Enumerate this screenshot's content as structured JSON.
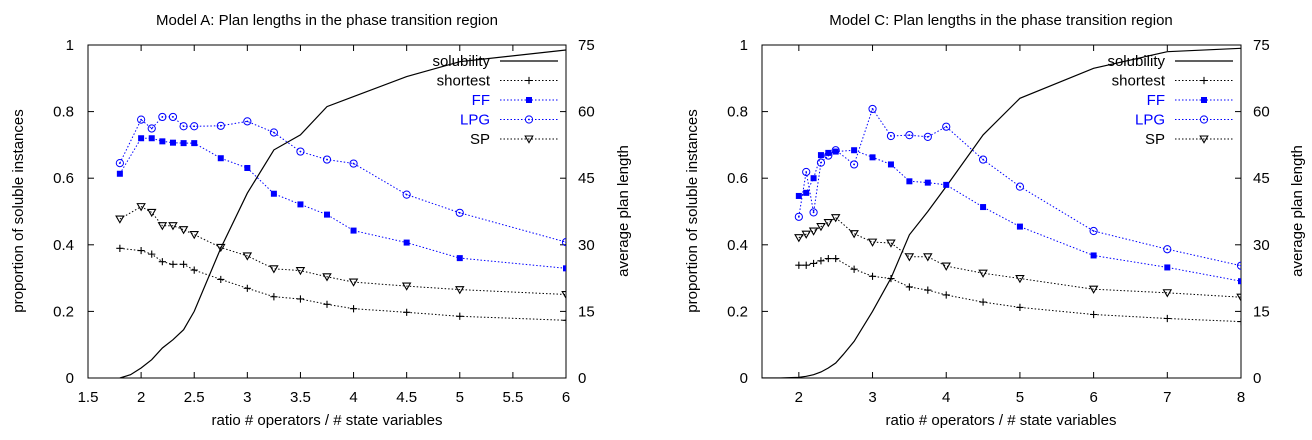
{
  "chart_data": [
    {
      "type": "line",
      "title": "Model A: Plan lengths in the phase transition region",
      "xlabel": "ratio # operators / # state variables",
      "ylabel": "proportion of soluble instances",
      "y2label": "average plan length",
      "xlim": [
        1.5,
        6
      ],
      "ylim": [
        0,
        1
      ],
      "y2lim": [
        0,
        75
      ],
      "xticks": [
        "1.5",
        "2",
        "2.5",
        "3",
        "3.5",
        "4",
        "4.5",
        "5",
        "5.5",
        "6"
      ],
      "yticks": [
        "0",
        "0.2",
        "0.4",
        "0.6",
        "0.8",
        "1"
      ],
      "y2ticks": [
        "0",
        "15",
        "30",
        "45",
        "60",
        "75"
      ],
      "legend_position": "top-right",
      "series": [
        {
          "name": "solubility",
          "axis": "left",
          "style": "solid",
          "marker": "none",
          "color": "#000000",
          "x": [
            1.8,
            1.9,
            2.0,
            2.1,
            2.2,
            2.3,
            2.4,
            2.5,
            2.75,
            3.0,
            3.25,
            3.5,
            3.75,
            4.0,
            4.5,
            5.0,
            6.0
          ],
          "y": [
            0.0,
            0.01,
            0.03,
            0.055,
            0.09,
            0.115,
            0.145,
            0.2,
            0.39,
            0.555,
            0.685,
            0.73,
            0.815,
            0.845,
            0.905,
            0.95,
            0.985
          ]
        },
        {
          "name": "shortest",
          "axis": "right",
          "style": "dotted",
          "marker": "plus",
          "color": "#000000",
          "x": [
            1.8,
            2.0,
            2.1,
            2.2,
            2.3,
            2.4,
            2.5,
            2.75,
            3.0,
            3.25,
            3.5,
            3.75,
            4.0,
            4.5,
            5.0,
            6.0
          ],
          "y": [
            29.2,
            28.7,
            27.9,
            26.2,
            25.6,
            25.6,
            24.3,
            22.2,
            20.2,
            18.3,
            17.8,
            16.6,
            15.6,
            14.8,
            13.9,
            13.0
          ]
        },
        {
          "name": "FF",
          "axis": "right",
          "style": "dotted",
          "marker": "square",
          "color": "#0000ff",
          "x": [
            1.8,
            2.0,
            2.1,
            2.2,
            2.3,
            2.4,
            2.5,
            2.75,
            3.0,
            3.25,
            3.5,
            3.75,
            4.0,
            4.5,
            5.0,
            6.0
          ],
          "y": [
            46.0,
            54.0,
            54.0,
            53.3,
            53.0,
            52.9,
            52.9,
            49.5,
            47.3,
            41.5,
            39.1,
            36.8,
            33.2,
            30.5,
            27.0,
            24.7
          ]
        },
        {
          "name": "LPG",
          "axis": "right",
          "style": "dotted",
          "marker": "circle",
          "color": "#0000ff",
          "x": [
            1.8,
            2.0,
            2.1,
            2.2,
            2.3,
            2.4,
            2.5,
            2.75,
            3.0,
            3.25,
            3.5,
            3.75,
            4.0,
            4.5,
            5.0,
            6.0
          ],
          "y": [
            48.4,
            58.2,
            56.2,
            58.8,
            58.8,
            56.7,
            56.7,
            56.8,
            57.8,
            55.3,
            51.0,
            49.2,
            48.3,
            41.3,
            37.2,
            30.6
          ]
        },
        {
          "name": "SP",
          "axis": "right",
          "style": "dotted",
          "marker": "triangle-down",
          "color": "#000000",
          "x": [
            1.8,
            2.0,
            2.1,
            2.2,
            2.3,
            2.4,
            2.5,
            2.75,
            3.0,
            3.25,
            3.5,
            3.75,
            4.0,
            4.5,
            5.0,
            6.0
          ],
          "y": [
            35.8,
            38.6,
            37.3,
            34.3,
            34.3,
            33.4,
            32.3,
            29.4,
            27.5,
            24.6,
            24.2,
            22.8,
            21.6,
            20.7,
            19.9,
            18.8
          ]
        }
      ]
    },
    {
      "type": "line",
      "title": "Model C: Plan lengths in the phase transition region",
      "xlabel": "ratio # operators / # state variables",
      "ylabel": "proportion of soluble instances",
      "y2label": "average plan length",
      "xlim": [
        1.5,
        8
      ],
      "ylim": [
        0,
        1
      ],
      "y2lim": [
        0,
        75
      ],
      "xticks": [
        "2",
        "3",
        "4",
        "5",
        "6",
        "7",
        "8"
      ],
      "yticks": [
        "0",
        "0.2",
        "0.4",
        "0.6",
        "0.8",
        "1"
      ],
      "y2ticks": [
        "0",
        "15",
        "30",
        "45",
        "60",
        "75"
      ],
      "legend_position": "top-right",
      "series": [
        {
          "name": "solubility",
          "axis": "left",
          "style": "solid",
          "marker": "none",
          "color": "#000000",
          "x": [
            1.5,
            1.75,
            2.0,
            2.1,
            2.2,
            2.3,
            2.4,
            2.5,
            2.6,
            2.75,
            3.0,
            3.25,
            3.5,
            3.75,
            4.0,
            4.5,
            5.0,
            6.0,
            7.0,
            8.0
          ],
          "y": [
            0.0,
            0.0,
            0.002,
            0.005,
            0.01,
            0.018,
            0.03,
            0.045,
            0.07,
            0.11,
            0.2,
            0.3,
            0.43,
            0.5,
            0.575,
            0.73,
            0.84,
            0.93,
            0.98,
            0.99
          ]
        },
        {
          "name": "shortest",
          "axis": "right",
          "style": "dotted",
          "marker": "plus",
          "color": "#000000",
          "x": [
            2.0,
            2.1,
            2.2,
            2.3,
            2.4,
            2.5,
            2.75,
            3.0,
            3.25,
            3.5,
            3.75,
            4.0,
            4.5,
            5.0,
            6.0,
            7.0,
            8.0
          ],
          "y": [
            25.4,
            25.4,
            25.8,
            26.4,
            26.9,
            26.9,
            24.5,
            22.9,
            22.4,
            20.5,
            19.8,
            18.7,
            17.1,
            15.9,
            14.3,
            13.4,
            12.7
          ]
        },
        {
          "name": "FF",
          "axis": "right",
          "style": "dotted",
          "marker": "square",
          "color": "#0000ff",
          "x": [
            2.0,
            2.1,
            2.2,
            2.3,
            2.4,
            2.5,
            2.75,
            3.0,
            3.25,
            3.5,
            3.75,
            4.0,
            4.5,
            5.0,
            6.0,
            7.0,
            8.0
          ],
          "y": [
            41.0,
            41.7,
            45.0,
            50.2,
            50.7,
            51.0,
            51.3,
            49.7,
            48.1,
            44.3,
            44.0,
            43.5,
            38.5,
            34.1,
            27.6,
            24.9,
            21.8
          ]
        },
        {
          "name": "LPG",
          "axis": "right",
          "style": "dotted",
          "marker": "circle",
          "color": "#0000ff",
          "x": [
            2.0,
            2.1,
            2.2,
            2.3,
            2.4,
            2.5,
            2.75,
            3.0,
            3.25,
            3.5,
            3.75,
            4.0,
            4.5,
            5.0,
            6.0,
            7.0,
            8.0
          ],
          "y": [
            36.3,
            46.4,
            37.3,
            48.5,
            50.1,
            51.3,
            48.1,
            60.6,
            54.5,
            54.7,
            54.3,
            56.6,
            49.2,
            43.1,
            33.1,
            29.0,
            25.3
          ]
        },
        {
          "name": "SP",
          "axis": "right",
          "style": "dotted",
          "marker": "triangle-down",
          "color": "#000000",
          "x": [
            2.0,
            2.1,
            2.2,
            2.3,
            2.4,
            2.5,
            2.75,
            3.0,
            3.25,
            3.5,
            3.75,
            4.0,
            4.5,
            5.0,
            6.0,
            7.0,
            8.0
          ],
          "y": [
            31.6,
            32.4,
            33.1,
            34.1,
            35.0,
            36.1,
            32.5,
            30.6,
            30.4,
            27.3,
            27.3,
            25.2,
            23.6,
            22.4,
            20.0,
            19.2,
            18.2
          ]
        }
      ]
    }
  ]
}
